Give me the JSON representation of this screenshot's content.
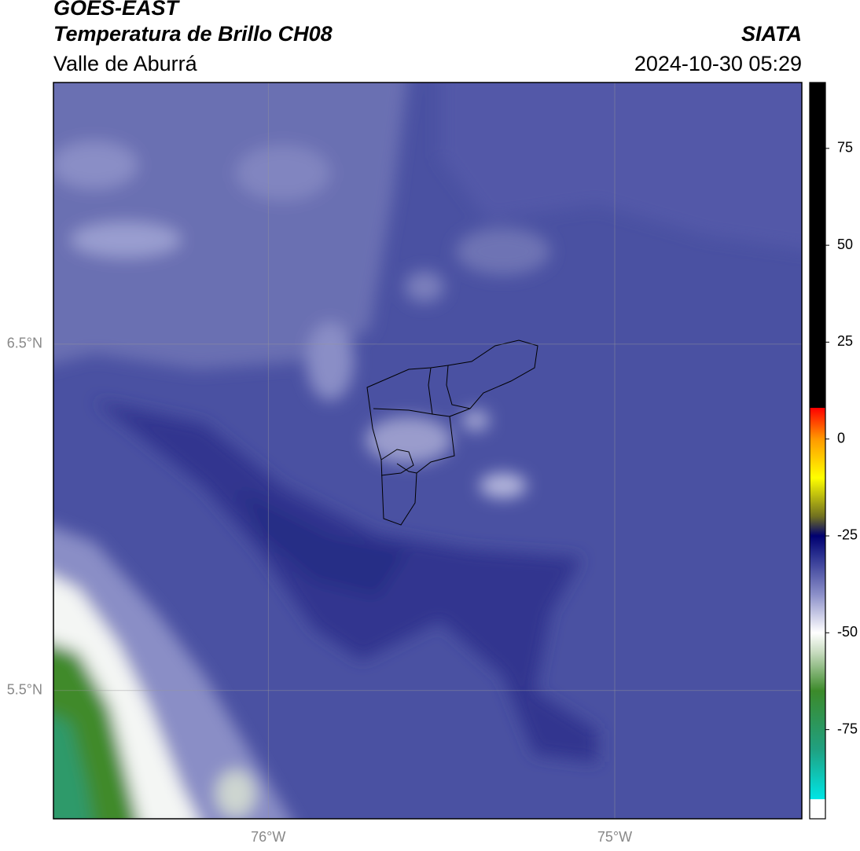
{
  "header": {
    "satellite": "GOES-EAST",
    "product": "Temperatura de Brillo CH08",
    "region": "Valle de Aburrá",
    "source": "SIATA",
    "timestamp": "2024-10-30 05:29"
  },
  "map": {
    "xlim": [
      -76.62,
      -74.46
    ],
    "ylim": [
      5.13,
      7.255
    ],
    "xticks": [
      {
        "value": -76,
        "label": "76°W"
      },
      {
        "value": -75,
        "label": "75°W"
      }
    ],
    "yticks": [
      {
        "value": 6.5,
        "label": "6.5°N"
      },
      {
        "value": 5.5,
        "label": "5.5°N"
      }
    ],
    "grid": true
  },
  "colorbar": {
    "range": [
      -98,
      92
    ],
    "ticks": [
      75,
      50,
      25,
      0,
      -25,
      -50,
      -75
    ],
    "stops": [
      {
        "value": -98,
        "color": "#ffffff"
      },
      {
        "value": -93,
        "color": "#ffffff"
      },
      {
        "value": -92.9,
        "color": "#00e5e5"
      },
      {
        "value": -80,
        "color": "#20a080"
      },
      {
        "value": -65,
        "color": "#3c8a2a"
      },
      {
        "value": -55,
        "color": "#c8dcc0"
      },
      {
        "value": -50,
        "color": "#ffffff"
      },
      {
        "value": -40,
        "color": "#8a8ec8"
      },
      {
        "value": -30,
        "color": "#2a3090"
      },
      {
        "value": -25,
        "color": "#000070"
      },
      {
        "value": -20,
        "color": "#707020"
      },
      {
        "value": -10,
        "color": "#ffff00"
      },
      {
        "value": 0,
        "color": "#ff9900"
      },
      {
        "value": 8,
        "color": "#ff0000"
      },
      {
        "value": 8.1,
        "color": "#000000"
      },
      {
        "value": 92,
        "color": "#000000"
      }
    ]
  }
}
